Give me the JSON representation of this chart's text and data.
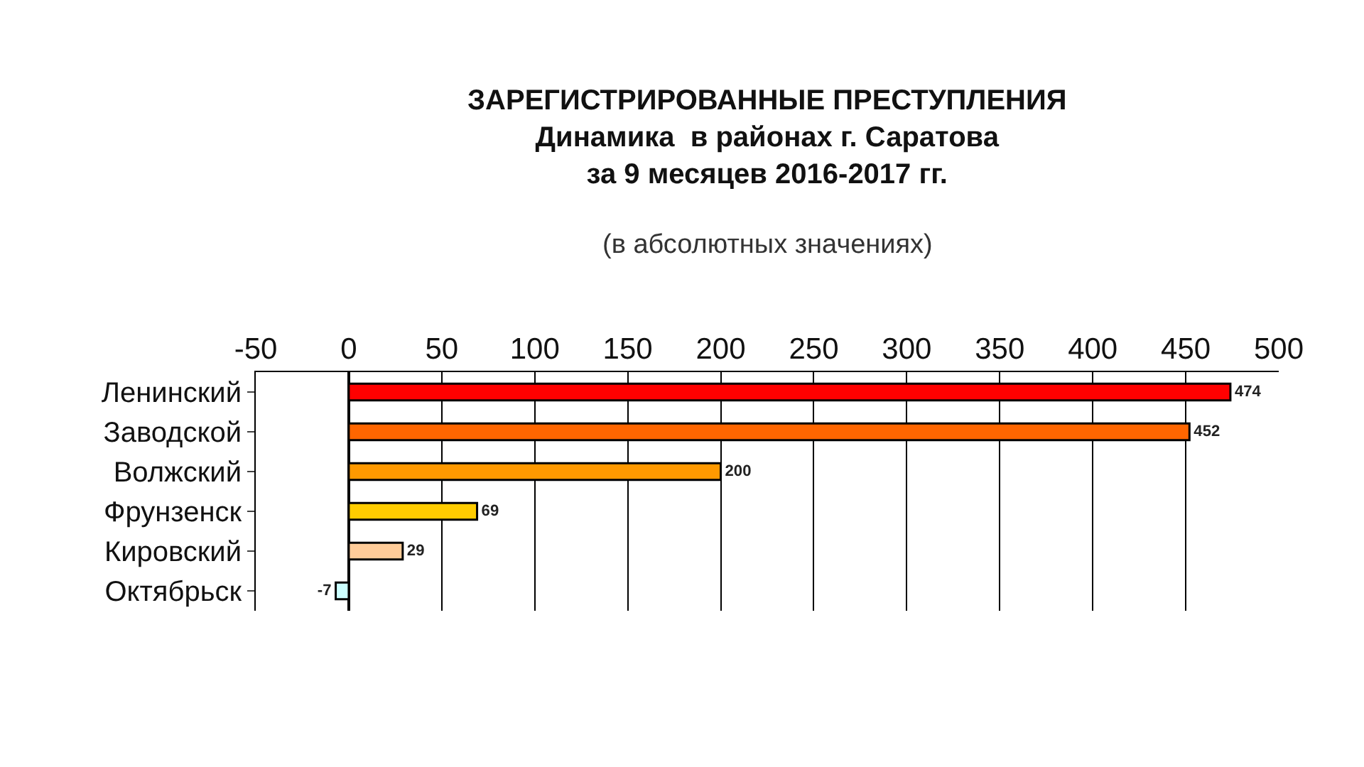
{
  "chart_data": {
    "type": "bar",
    "orientation": "horizontal",
    "title": "ЗАРЕГИСТРИРОВАННЫЕ ПРЕСТУПЛЕНИЯ\nДинамика  в районах г. Саратова\nза 9 месяцев 2016-2017 гг.",
    "subtitle": "(в абсолютных значениях)",
    "categories": [
      "Ленинский",
      "Заводской",
      "Волжский",
      "Фрунзенск",
      "Кировский",
      "Октябрьск"
    ],
    "values": [
      474,
      452,
      200,
      69,
      29,
      -7
    ],
    "colors": [
      "#ff0000",
      "#ff6600",
      "#ff9900",
      "#ffcc00",
      "#ffcc99",
      "#ccffff"
    ],
    "xlim": [
      -50,
      500
    ],
    "xticks": [
      -50,
      0,
      50,
      100,
      150,
      200,
      250,
      300,
      350,
      400,
      450,
      500
    ],
    "grid": "x",
    "data_labels": true,
    "legend": false
  }
}
